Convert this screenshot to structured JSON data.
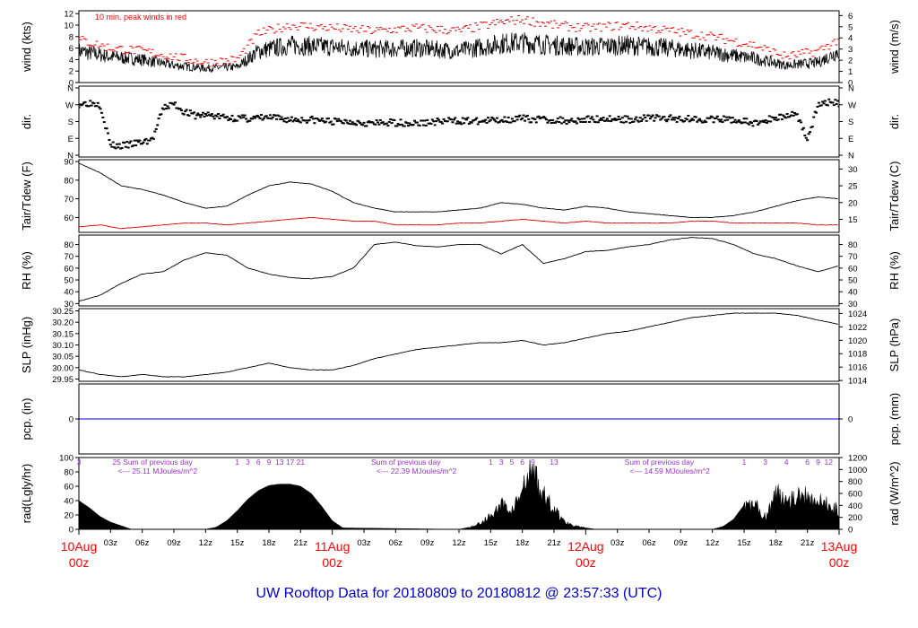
{
  "title": "UW Rooftop Data for 20180809  to  20180812 @ 23:57:33  (UTC)",
  "colors": {
    "data": "#000000",
    "peak": "#ff0000",
    "dew": "#e00000",
    "pcp": "#0000cc",
    "annot": "#9a32cd",
    "title": "#0000cc",
    "date": "#ff0000"
  },
  "x_axis": {
    "hour_ticks": [
      "03z",
      "06z",
      "09z",
      "12z",
      "15z",
      "18z",
      "21z",
      "03z",
      "06z",
      "09z",
      "12z",
      "15z",
      "18z",
      "21z",
      "03z",
      "06z",
      "09z",
      "12z",
      "15z",
      "18z",
      "21z"
    ],
    "hour_values": [
      3,
      6,
      9,
      12,
      15,
      18,
      21,
      27,
      30,
      33,
      36,
      39,
      42,
      45,
      51,
      54,
      57,
      60,
      63,
      66,
      69
    ],
    "days": [
      {
        "date": "10Aug",
        "hour": "00z",
        "x": 0
      },
      {
        "date": "11Aug",
        "hour": "00z",
        "x": 24
      },
      {
        "date": "12Aug",
        "hour": "00z",
        "x": 48
      },
      {
        "date": "13Aug",
        "hour": "00z",
        "x": 72
      }
    ]
  },
  "chart_data": [
    {
      "id": "wind",
      "type": "line",
      "ylabel_left": "wind (kts)",
      "ylabel_right": "wind (m/s)",
      "annotation": "10 min. peak winds in red",
      "ylim": [
        0,
        12.5
      ],
      "yticks_left": [
        "0",
        "2",
        "4",
        "6",
        "8",
        "10",
        "12"
      ],
      "yticks_right": [
        "0",
        "1",
        "2",
        "3",
        "4",
        "5",
        "6"
      ],
      "series": [
        {
          "values_x": [
            0,
            3,
            6,
            9,
            12,
            15,
            17,
            20,
            24,
            28,
            32,
            36,
            40,
            42,
            45,
            48,
            52,
            56,
            60,
            64,
            67,
            70,
            72
          ],
          "values_y": [
            5.5,
            4.5,
            4,
            3,
            2.5,
            2.7,
            5.5,
            6.5,
            6.2,
            5.8,
            6,
            5.5,
            6.8,
            7,
            6.5,
            6.2,
            6.5,
            6,
            5.2,
            4.2,
            3,
            3.5,
            5.5
          ]
        },
        {
          "values_x": [
            0,
            3,
            6,
            9,
            12,
            15,
            17,
            20,
            24,
            28,
            32,
            36,
            40,
            42,
            45,
            48,
            52,
            56,
            60,
            64,
            67,
            70,
            72
          ],
          "values_y": [
            7.5,
            6,
            5.5,
            4.5,
            3.5,
            4,
            8.5,
            10,
            9.5,
            9,
            9.5,
            9,
            10.5,
            11,
            10,
            9.5,
            10,
            9,
            8,
            6.5,
            4.5,
            5.5,
            7.5
          ]
        }
      ]
    },
    {
      "id": "dir",
      "type": "scatter",
      "ylabel_left": "dir.",
      "ylabel_right": "dir.",
      "ylim": [
        0,
        360
      ],
      "yticks_left": [
        "N",
        "E",
        "S",
        "W",
        "N"
      ],
      "yticks_right": [
        "N",
        "E",
        "S",
        "W",
        "N"
      ],
      "x": [
        0,
        1,
        2,
        3,
        4,
        5,
        6,
        7,
        8,
        9,
        10,
        11,
        12,
        14,
        16,
        18,
        20,
        22,
        24,
        26,
        28,
        30,
        32,
        34,
        36,
        38,
        40,
        42,
        44,
        46,
        48,
        50,
        52,
        54,
        56,
        58,
        60,
        62,
        64,
        66,
        68,
        69,
        70,
        71,
        72
      ],
      "y": [
        270,
        275,
        270,
        60,
        55,
        65,
        75,
        90,
        250,
        270,
        230,
        210,
        215,
        200,
        195,
        200,
        190,
        190,
        180,
        180,
        170,
        175,
        170,
        180,
        185,
        180,
        190,
        195,
        190,
        185,
        190,
        195,
        190,
        200,
        195,
        195,
        190,
        190,
        170,
        200,
        220,
        90,
        260,
        280,
        270
      ]
    },
    {
      "id": "temp",
      "type": "line",
      "ylabel_left": "Tair/Tdew (F)",
      "ylabel_right": "Tair/Tdew (C)",
      "ylim": [
        52,
        91
      ],
      "yticks_left": [
        "60",
        "70",
        "80",
        "90"
      ],
      "yticks_right": [
        "15",
        "20",
        "25",
        "30"
      ],
      "series": [
        {
          "values_x": [
            0,
            2,
            4,
            6,
            8,
            10,
            12,
            14,
            16,
            18,
            20,
            22,
            24,
            26,
            28,
            30,
            32,
            34,
            36,
            38,
            40,
            42,
            44,
            46,
            48,
            50,
            52,
            54,
            56,
            58,
            60,
            62,
            64,
            66,
            68,
            70,
            72
          ],
          "values_y": [
            89,
            84,
            77,
            75,
            72,
            68,
            65,
            66,
            72,
            77,
            79,
            78,
            74,
            68,
            65,
            63,
            63,
            63,
            64,
            65,
            68,
            67,
            65,
            64,
            66,
            65,
            63,
            62,
            61,
            60,
            60,
            61,
            63,
            66,
            69,
            71,
            70
          ]
        },
        {
          "values_x": [
            0,
            2,
            4,
            6,
            8,
            10,
            12,
            14,
            16,
            18,
            20,
            22,
            24,
            26,
            28,
            30,
            32,
            34,
            36,
            38,
            40,
            42,
            44,
            46,
            48,
            50,
            52,
            54,
            56,
            58,
            60,
            62,
            64,
            66,
            68,
            70,
            72
          ],
          "values_y": [
            55,
            56,
            54,
            55,
            56,
            57,
            57,
            56,
            57,
            58,
            59,
            60,
            59,
            58,
            58,
            56,
            56,
            56,
            57,
            57,
            58,
            59,
            58,
            57,
            58,
            57,
            57,
            57,
            57,
            58,
            58,
            57,
            57,
            57,
            57,
            56,
            56
          ]
        }
      ]
    },
    {
      "id": "rh",
      "type": "line",
      "ylabel_left": "RH (%)",
      "ylabel_right": "RH (%)",
      "ylim": [
        28,
        88
      ],
      "yticks_left": [
        "30",
        "40",
        "50",
        "60",
        "70",
        "80"
      ],
      "yticks_right": [
        "30",
        "40",
        "50",
        "60",
        "70",
        "80"
      ],
      "series": [
        {
          "values_x": [
            0,
            2,
            4,
            6,
            8,
            10,
            12,
            14,
            16,
            18,
            20,
            22,
            24,
            26,
            28,
            30,
            32,
            34,
            36,
            38,
            40,
            42,
            44,
            46,
            48,
            50,
            52,
            54,
            56,
            58,
            60,
            62,
            64,
            66,
            68,
            70,
            72
          ],
          "values_y": [
            32,
            37,
            47,
            55,
            57,
            67,
            73,
            71,
            60,
            55,
            52,
            51,
            53,
            60,
            80,
            82,
            79,
            78,
            80,
            80,
            72,
            80,
            64,
            68,
            74,
            75,
            78,
            80,
            84,
            86,
            85,
            80,
            72,
            68,
            62,
            57,
            62
          ]
        }
      ]
    },
    {
      "id": "slp",
      "type": "line",
      "ylabel_left": "SLP (inHg)",
      "ylabel_right": "SLP (hPa)",
      "ylim": [
        29.94,
        30.26
      ],
      "yticks_left": [
        "29.95",
        "30.00",
        "30.05",
        "30.10",
        "30.15",
        "30.20",
        "30.25"
      ],
      "yticks_right": [
        "1014",
        "1016",
        "1018",
        "1020",
        "1022",
        "1024"
      ],
      "series": [
        {
          "values_x": [
            0,
            2,
            4,
            6,
            8,
            10,
            12,
            14,
            16,
            18,
            20,
            22,
            24,
            26,
            28,
            30,
            32,
            34,
            36,
            38,
            40,
            42,
            44,
            46,
            48,
            50,
            52,
            54,
            56,
            58,
            60,
            62,
            64,
            66,
            68,
            70,
            72
          ],
          "values_y": [
            29.99,
            29.97,
            29.96,
            29.97,
            29.96,
            29.96,
            29.97,
            29.98,
            30.0,
            30.02,
            30.0,
            29.99,
            29.99,
            30.01,
            30.04,
            30.06,
            30.08,
            30.09,
            30.1,
            30.11,
            30.11,
            30.12,
            30.1,
            30.11,
            30.13,
            30.15,
            30.16,
            30.18,
            30.2,
            30.22,
            30.23,
            30.24,
            30.24,
            30.24,
            30.23,
            30.21,
            30.19
          ]
        }
      ]
    },
    {
      "id": "pcp",
      "type": "line",
      "ylabel_left": "pcp. (in)",
      "ylabel_right": "pcp. (mm)",
      "ylim": [
        -1,
        1
      ],
      "yticks_left": [
        "0"
      ],
      "yticks_right": [
        "0"
      ],
      "series": [
        {
          "values_x": [
            0,
            72
          ],
          "values_y": [
            0,
            0
          ]
        }
      ]
    },
    {
      "id": "rad",
      "type": "area",
      "ylabel_left": "rad(Lgly/hr)",
      "ylabel_right": "rad (W/m^2)",
      "ylim": [
        0,
        100
      ],
      "yticks_left": [
        "0",
        "20",
        "40",
        "60",
        "80",
        "100"
      ],
      "yticks_right": [
        "0",
        "200",
        "400",
        "600",
        "800",
        "1000",
        "1200"
      ],
      "series": [
        {
          "values_x": [
            0,
            1,
            2,
            3,
            4,
            5,
            12,
            13,
            14,
            15,
            16,
            17,
            18,
            19,
            20,
            21,
            22,
            23,
            24,
            25,
            36,
            37,
            38,
            39,
            40,
            41,
            42,
            43,
            44,
            45,
            46,
            47,
            48,
            49,
            50,
            60,
            61,
            62,
            63,
            64,
            65,
            66,
            67,
            68,
            69,
            70,
            71,
            72
          ],
          "values_y": [
            40,
            30,
            18,
            10,
            5,
            0,
            0,
            3,
            12,
            26,
            42,
            54,
            61,
            63,
            63,
            60,
            50,
            32,
            12,
            2,
            0,
            3,
            10,
            22,
            40,
            30,
            62,
            98,
            54,
            34,
            12,
            6,
            2,
            0,
            0,
            0,
            4,
            14,
            34,
            40,
            20,
            58,
            54,
            52,
            56,
            44,
            40,
            30
          ]
        }
      ],
      "hour_labels": [
        {
          "x": 0,
          "t": "3"
        },
        {
          "x": 15,
          "t": "1"
        },
        {
          "x": 16,
          "t": "3"
        },
        {
          "x": 17,
          "t": "6"
        },
        {
          "x": 18,
          "t": "9"
        },
        {
          "x": 19,
          "t": "13"
        },
        {
          "x": 20,
          "t": "17"
        },
        {
          "x": 21,
          "t": "21"
        },
        {
          "x": 39,
          "t": "1"
        },
        {
          "x": 40,
          "t": "3"
        },
        {
          "x": 41,
          "t": "5"
        },
        {
          "x": 42,
          "t": "6"
        },
        {
          "x": 43,
          "t": "9"
        },
        {
          "x": 45,
          "t": "13"
        },
        {
          "x": 63,
          "t": "1"
        },
        {
          "x": 65,
          "t": "3"
        },
        {
          "x": 67,
          "t": "4"
        },
        {
          "x": 69,
          "t": "6"
        },
        {
          "x": 70,
          "t": "9"
        },
        {
          "x": 71,
          "t": "12"
        }
      ],
      "daily_sums": [
        {
          "x": 2.5,
          "line1": "25 Sum of previous day",
          "line2": "<--- 25.11 MJoules/m^2"
        },
        {
          "x": 27,
          "line1": "Sum of previous day",
          "line2": "<--- 22.39 MJoules/m^2"
        },
        {
          "x": 51,
          "line1": "Sum of previous day",
          "line2": "<--- 14.59 MJoules/m^2"
        }
      ]
    }
  ]
}
